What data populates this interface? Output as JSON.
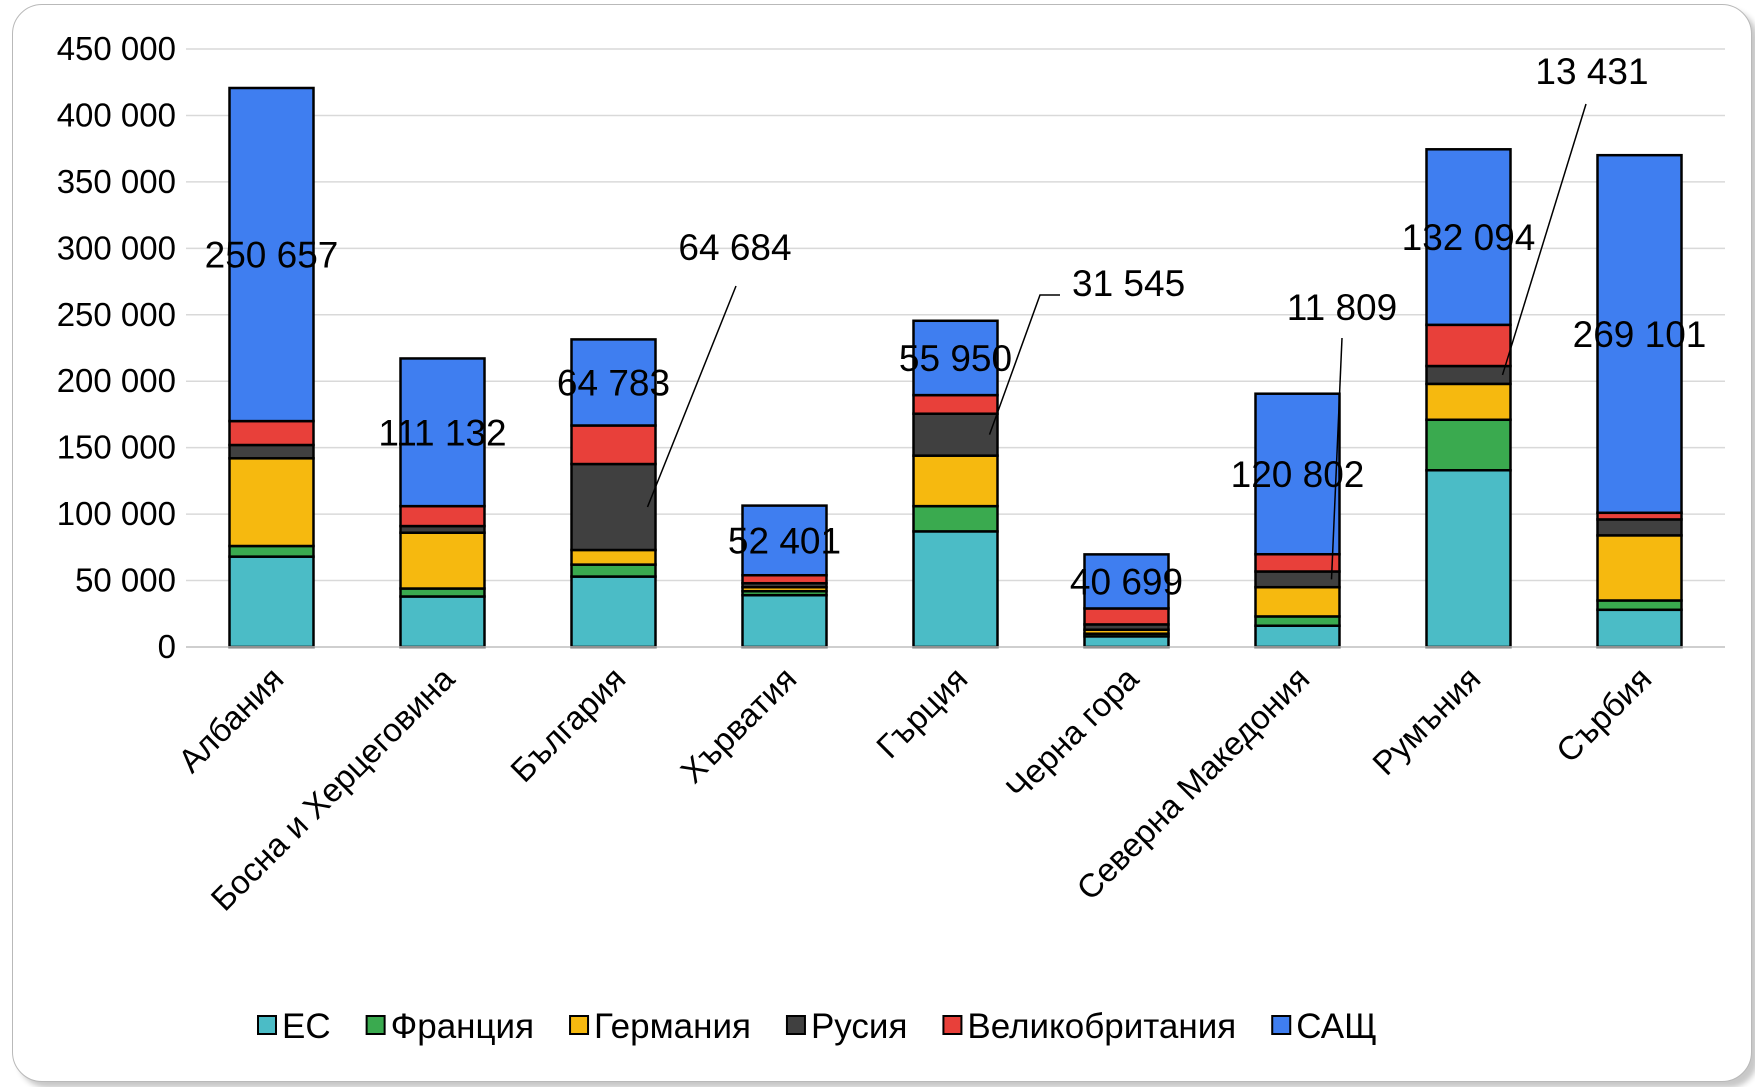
{
  "chart_data": {
    "type": "bar",
    "stacked": true,
    "categories": [
      "Албания",
      "Босна и Херцеговина",
      "България",
      "Хърватия",
      "Гърция",
      "Черна гора",
      "Северна Македония",
      "Румъния",
      "Сърбия"
    ],
    "series": [
      {
        "name": "ЕС",
        "color": "#4BBCC6",
        "values": [
          68000,
          38000,
          53000,
          39000,
          87000,
          8000,
          16000,
          133000,
          28000
        ]
      },
      {
        "name": "Франция",
        "color": "#3AAA4F",
        "values": [
          8000,
          6000,
          9000,
          3000,
          19000,
          2000,
          7000,
          38000,
          7000
        ]
      },
      {
        "name": "Германия",
        "color": "#F6B90F",
        "values": [
          66000,
          42000,
          11000,
          3000,
          38000,
          3000,
          22000,
          27000,
          49000
        ]
      },
      {
        "name": "Русия",
        "color": "#404040",
        "values": [
          10000,
          5000,
          64684,
          3000,
          31545,
          4000,
          11809,
          13431,
          12000
        ]
      },
      {
        "name": "Великобритания",
        "color": "#E8403A",
        "values": [
          18000,
          15000,
          29000,
          6000,
          14000,
          12000,
          13000,
          31000,
          5000
        ]
      },
      {
        "name": "САЩ",
        "color": "#3F7EF0",
        "values": [
          250657,
          111132,
          64783,
          52401,
          55950,
          40699,
          120802,
          132094,
          269101
        ]
      }
    ],
    "data_labels": [
      {
        "category": "Албания",
        "series": "САЩ",
        "text": "250 657"
      },
      {
        "category": "Босна и Херцеговина",
        "series": "САЩ",
        "text": "111 132"
      },
      {
        "category": "България",
        "series": "САЩ",
        "text": "64 783"
      },
      {
        "category": "България",
        "series": "Русия",
        "text": "64 684",
        "leader": true
      },
      {
        "category": "Хърватия",
        "series": "САЩ",
        "text": "52 401"
      },
      {
        "category": "Гърция",
        "series": "САЩ",
        "text": "55 950"
      },
      {
        "category": "Гърция",
        "series": "Русия",
        "text": "31 545",
        "leader": true
      },
      {
        "category": "Черна гора",
        "series": "САЩ",
        "text": "40 699"
      },
      {
        "category": "Северна Македония",
        "series": "САЩ",
        "text": "120 802"
      },
      {
        "category": "Северна Македония",
        "series": "Русия",
        "text": "11 809",
        "leader": true
      },
      {
        "category": "Румъния",
        "series": "САЩ",
        "text": "132 094"
      },
      {
        "category": "Румъния",
        "series": "Русия",
        "text": "13 431",
        "leader": true
      },
      {
        "category": "Сърбия",
        "series": "САЩ",
        "text": "269 101"
      }
    ],
    "ylim": [
      0,
      450000
    ],
    "yticks": [
      0,
      50000,
      100000,
      150000,
      200000,
      250000,
      300000,
      350000,
      400000,
      450000
    ],
    "ytick_labels": [
      "0",
      "50 000",
      "100 000",
      "150 000",
      "200 000",
      "250 000",
      "300 000",
      "350 000",
      "400 000",
      "450 000"
    ],
    "grid": true,
    "legend_position": "bottom"
  }
}
